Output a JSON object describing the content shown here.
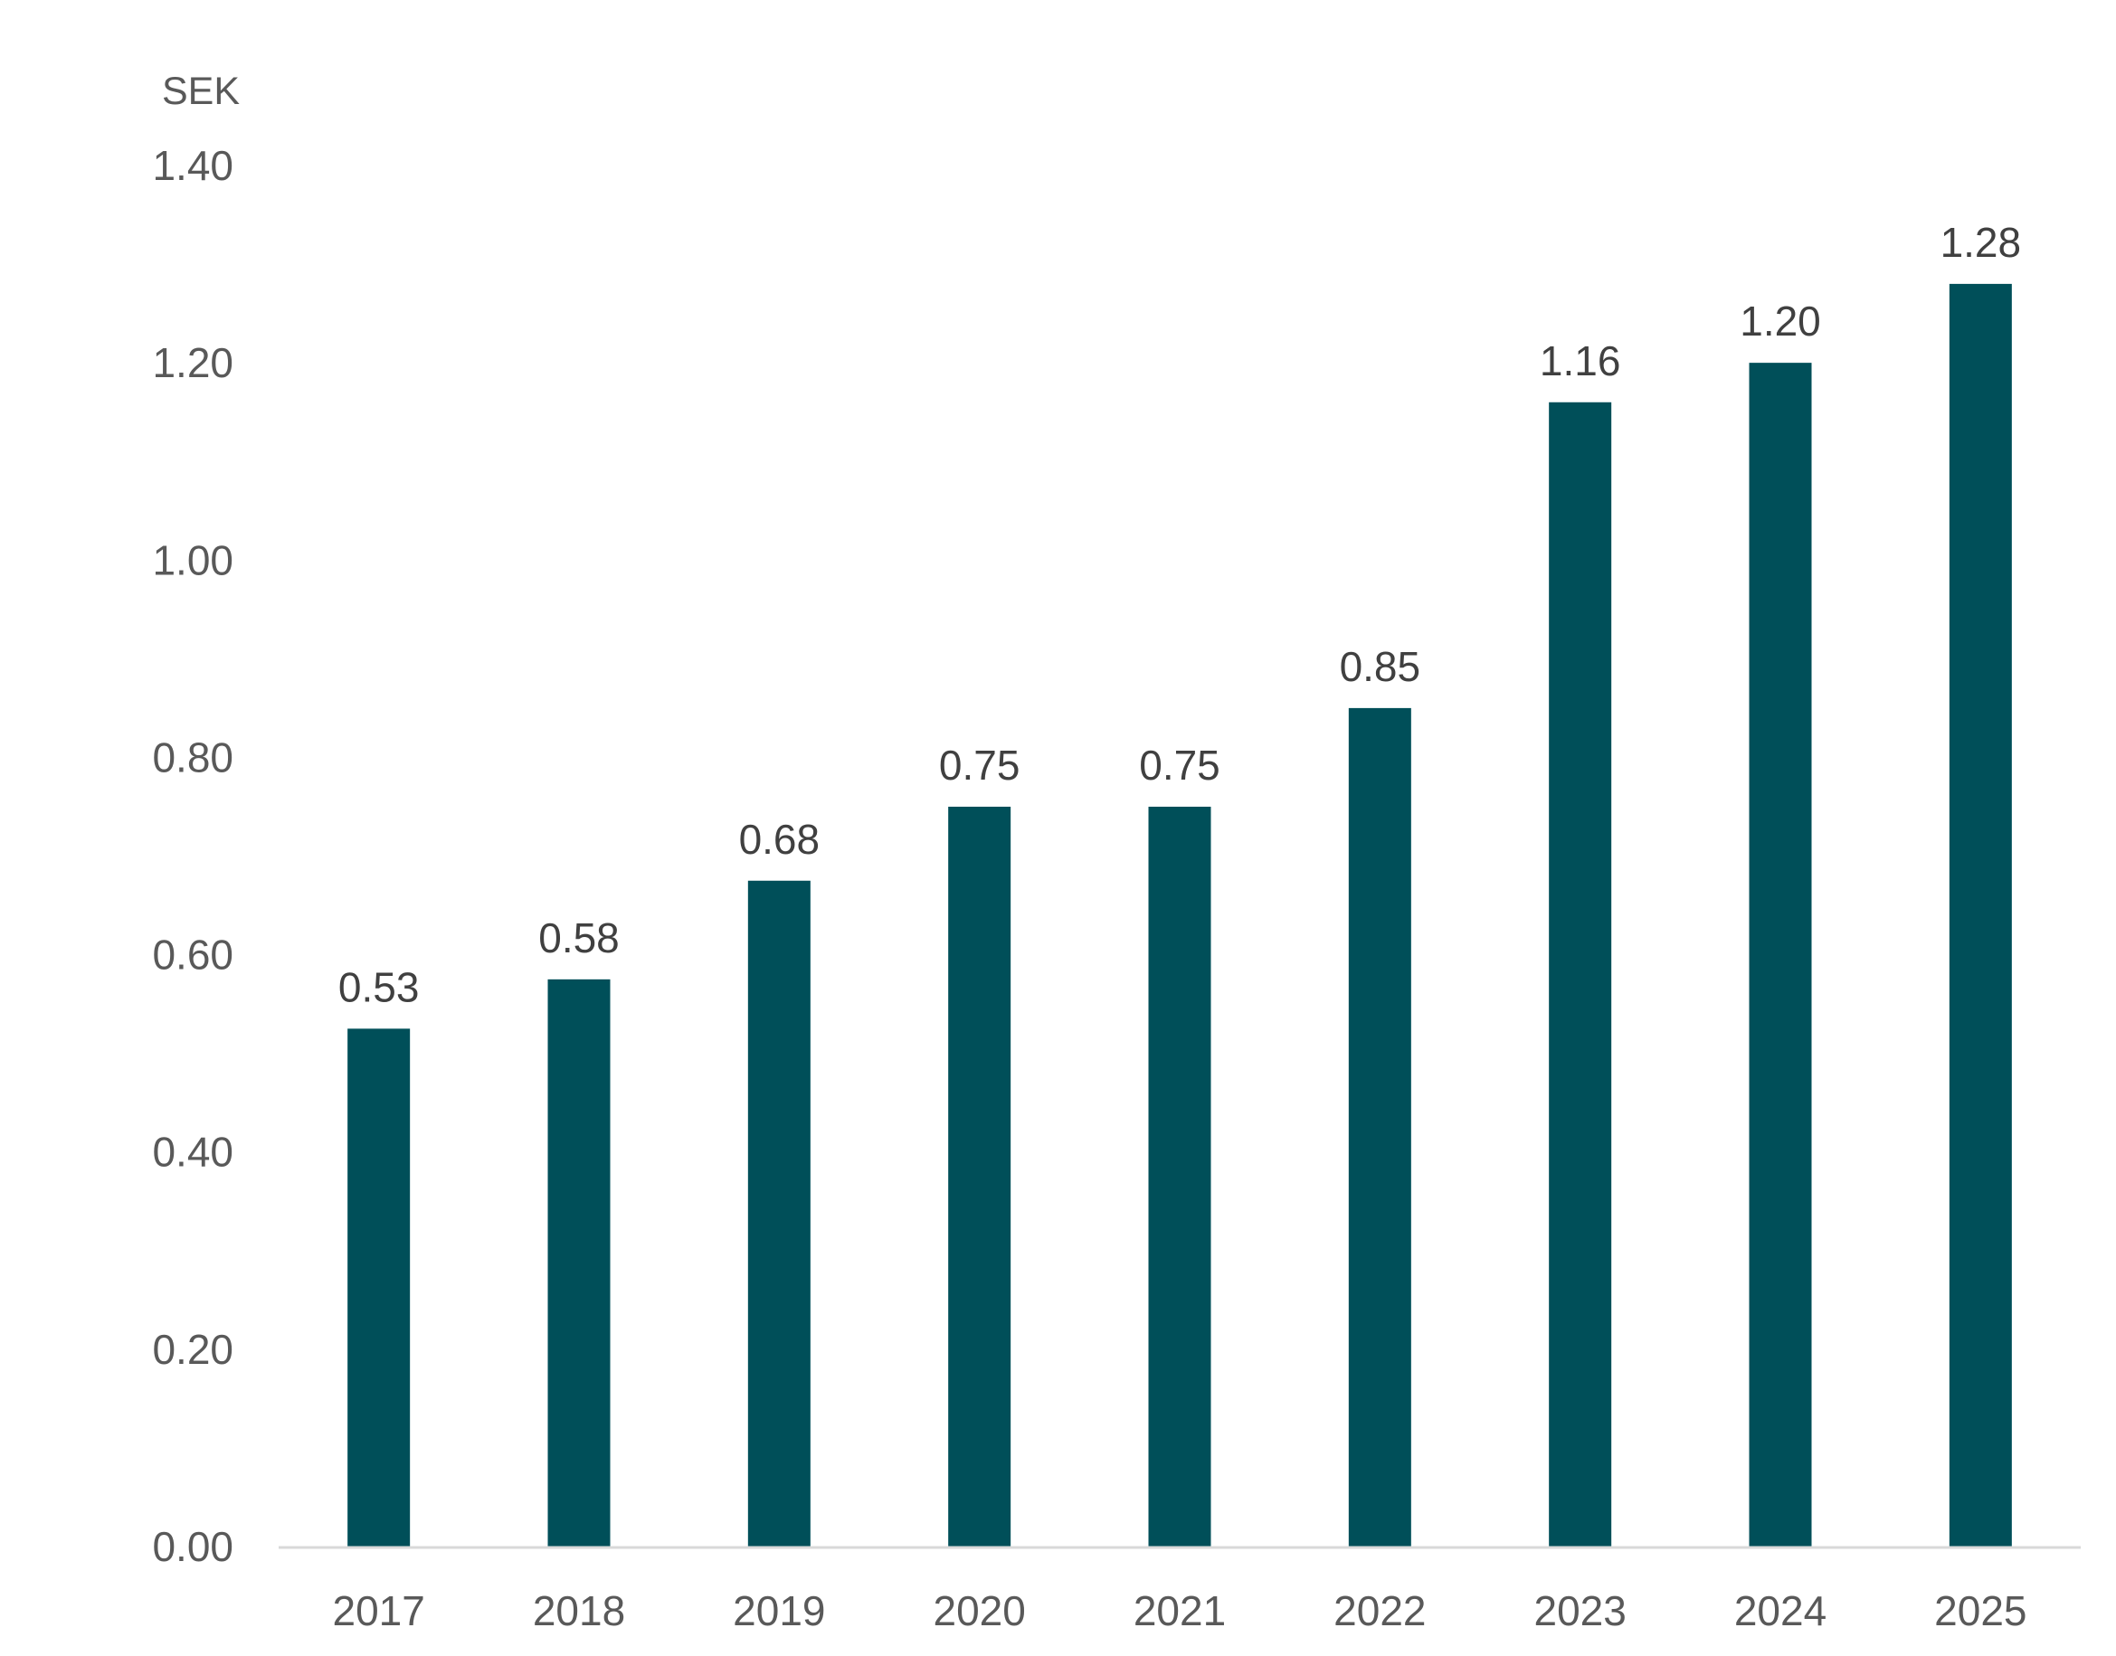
{
  "chart_data": {
    "type": "bar",
    "unit_label": "SEK",
    "categories": [
      "2017",
      "2018",
      "2019",
      "2020",
      "2021",
      "2022",
      "2023",
      "2024",
      "2025"
    ],
    "values": [
      0.525,
      0.575,
      0.675,
      0.75,
      0.75,
      0.85,
      1.16,
      1.2,
      1.28
    ],
    "data_labels": [
      "0.53",
      "0.58",
      "0.68",
      "0.75",
      "0.75",
      "0.85",
      "1.16",
      "1.20",
      "1.28"
    ],
    "y_ticks": [
      "0.00",
      "0.20",
      "0.40",
      "0.60",
      "0.80",
      "1.00",
      "1.20",
      "1.40"
    ],
    "ylim": [
      0,
      1.4
    ],
    "grid": false,
    "legend": "none",
    "bar_color": "#004F59",
    "axis_color": "#D9D9D9"
  }
}
